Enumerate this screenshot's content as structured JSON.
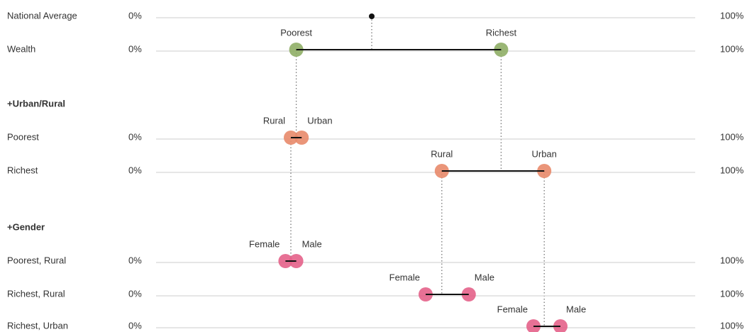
{
  "chart_data": {
    "type": "dot",
    "xlim": [
      0,
      100
    ],
    "xticks": [
      {
        "value": 0,
        "label": "0%"
      },
      {
        "value": 100,
        "label": "100%"
      }
    ],
    "rows": [
      {
        "label": "National Average",
        "points": [
          {
            "value": 40,
            "color": "#111111"
          }
        ]
      },
      {
        "label": "Wealth",
        "points": [
          {
            "name": "Poorest",
            "value": 26,
            "color": "#8fae66"
          },
          {
            "name": "Richest",
            "value": 64,
            "color": "#8fae66"
          }
        ]
      },
      {
        "heading": "+Urban/Rural"
      },
      {
        "label": "Poorest",
        "points": [
          {
            "name": "Rural",
            "value": 25,
            "color": "#e8896a"
          },
          {
            "name": "Urban",
            "value": 27,
            "color": "#e8896a"
          }
        ]
      },
      {
        "label": "Richest",
        "points": [
          {
            "name": "Rural",
            "value": 53,
            "color": "#e8896a"
          },
          {
            "name": "Urban",
            "value": 72,
            "color": "#e8896a"
          }
        ]
      },
      {
        "heading": "+Gender"
      },
      {
        "label": "Poorest, Rural",
        "points": [
          {
            "name": "Female",
            "value": 24,
            "color": "#e4628a"
          },
          {
            "name": "Male",
            "value": 26,
            "color": "#e4628a"
          }
        ]
      },
      {
        "label": "Richest, Rural",
        "points": [
          {
            "name": "Female",
            "value": 50,
            "color": "#e4628a"
          },
          {
            "name": "Male",
            "value": 58,
            "color": "#e4628a"
          }
        ]
      },
      {
        "label": "Richest, Urban",
        "points": [
          {
            "name": "Female",
            "value": 70,
            "color": "#e4628a"
          },
          {
            "name": "Male",
            "value": 75,
            "color": "#e4628a"
          }
        ]
      }
    ]
  }
}
